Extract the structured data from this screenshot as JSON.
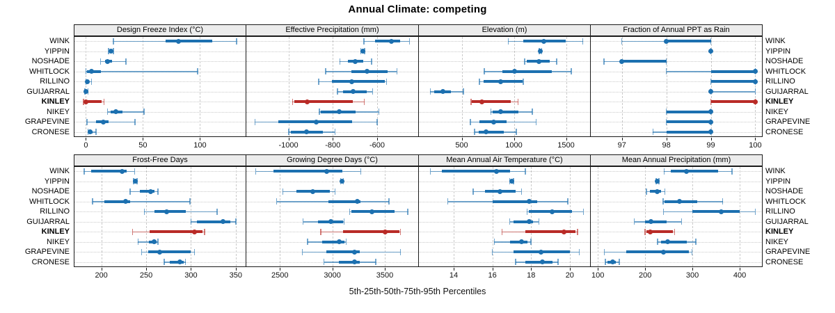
{
  "title": "Annual Climate: competing",
  "caption": "5th-25th-50th-75th-95th Percentiles",
  "highlight_site": "KINLEY",
  "colors": {
    "series_normal": "#1c70b0",
    "series_highlight": "#b92b27",
    "strip_bg": "#ececec",
    "panel_border": "#1a1a1a",
    "gridline": "#c9c9c9",
    "row_guide": "#c9c9c9"
  },
  "sites": [
    "WINK",
    "YIPPIN",
    "NOSHADE",
    "WHITLOCK",
    "RILLINO",
    "GUIJARRAL",
    "KINLEY",
    "NIKEY",
    "GRAPEVINE",
    "CRONESE"
  ],
  "chart_data": {
    "type": "dotplot-percentile-intervals",
    "percentile_labels": [
      "5th",
      "25th",
      "50th",
      "75th",
      "95th"
    ],
    "layout": {
      "rows": 2,
      "cols": 4,
      "legend": "none",
      "grid": "major-x-dashed, row-guides-dotted"
    },
    "panels": [
      {
        "title": "Design Freeze Index (°C)",
        "row": 0,
        "col": 0,
        "xlim": [
          -10,
          140
        ],
        "ticks": [
          0,
          50,
          100
        ],
        "values": {
          "WINK": [
            24,
            70,
            81,
            111,
            132
          ],
          "YIPPIN": [
            20,
            21,
            22,
            23,
            24
          ],
          "NOSHADE": [
            13,
            17,
            19,
            23,
            35
          ],
          "WHITLOCK": [
            0,
            1,
            5,
            13,
            98
          ],
          "RILLINO": [
            0,
            0,
            1,
            3,
            5
          ],
          "GUIJARRAL": [
            -1,
            0,
            0,
            1,
            2
          ],
          "KINLEY": [
            -2,
            0,
            0,
            14,
            16
          ],
          "NIKEY": [
            19,
            22,
            26,
            32,
            51
          ],
          "GRAPEVINE": [
            1,
            9,
            15,
            20,
            43
          ],
          "CRONESE": [
            2,
            3,
            4,
            6,
            9
          ]
        }
      },
      {
        "title": "Effective Precipitation (mm)",
        "row": 0,
        "col": 1,
        "xlim": [
          -1190,
          -415
        ],
        "ticks": [
          -1000,
          -800,
          -600
        ],
        "values": {
          "WINK": [
            -660,
            -610,
            -535,
            -495,
            -455
          ],
          "YIPPIN": [
            -674,
            -668,
            -663,
            -658,
            -656
          ],
          "NOSHADE": [
            -768,
            -731,
            -700,
            -663,
            -626
          ],
          "WHITLOCK": [
            -832,
            -716,
            -645,
            -553,
            -511
          ],
          "RILLINO": [
            -863,
            -803,
            -716,
            -565,
            -558
          ],
          "GUIJARRAL": [
            -779,
            -753,
            -707,
            -648,
            -621
          ],
          "KINLEY": [
            -982,
            -975,
            -916,
            -710,
            -658
          ],
          "NIKEY": [
            -861,
            -855,
            -772,
            -698,
            -593
          ],
          "GRAPEVINE": [
            -1150,
            -1045,
            -874,
            -713,
            -600
          ],
          "CRONESE": [
            -998,
            -990,
            -919,
            -845,
            -790
          ]
        }
      },
      {
        "title": "Elevation (m)",
        "row": 0,
        "col": 2,
        "xlim": [
          90,
          1730
        ],
        "ticks": [
          500,
          1000,
          1500
        ],
        "values": {
          "WINK": [
            945,
            1090,
            1287,
            1495,
            1660
          ],
          "YIPPIN": [
            1244,
            1249,
            1253,
            1259,
            1266
          ],
          "NOSHADE": [
            1102,
            1120,
            1237,
            1340,
            1410
          ],
          "WHITLOCK": [
            716,
            890,
            1006,
            1360,
            1550
          ],
          "RILLINO": [
            670,
            710,
            871,
            1080,
            1090
          ],
          "GUIJARRAL": [
            199,
            239,
            321,
            400,
            516
          ],
          "KINLEY": [
            590,
            596,
            690,
            969,
            1040
          ],
          "NIKEY": [
            779,
            797,
            873,
            1042,
            1176
          ],
          "GRAPEVINE": [
            583,
            672,
            806,
            931,
            1214
          ],
          "CRONESE": [
            623,
            663,
            734,
            902,
            1024
          ]
        }
      },
      {
        "title": "Fraction of Annual PPT as Rain",
        "row": 0,
        "col": 3,
        "xlim": [
          96.3,
          100.15
        ],
        "ticks": [
          97,
          98,
          99,
          100
        ],
        "values": {
          "WINK": [
            97,
            98,
            98,
            99,
            99
          ],
          "YIPPIN": [
            99,
            99,
            99,
            99,
            99
          ],
          "NOSHADE": [
            96.6,
            97,
            97,
            98,
            98
          ],
          "WHITLOCK": [
            98,
            99,
            100,
            100,
            100
          ],
          "RILLINO": [
            99,
            99,
            100,
            100,
            100
          ],
          "GUIJARRAL": [
            99,
            99,
            99,
            99,
            100
          ],
          "KINLEY": [
            99,
            99,
            100,
            100,
            100
          ],
          "NIKEY": [
            98,
            98,
            99,
            99,
            99
          ],
          "GRAPEVINE": [
            98,
            98,
            99,
            99,
            99
          ],
          "CRONESE": [
            97.7,
            98,
            99,
            99,
            99
          ]
        }
      },
      {
        "title": "Frost-Free Days",
        "row": 1,
        "col": 0,
        "xlim": [
          170,
          361
        ],
        "ticks": [
          200,
          250,
          300,
          350
        ],
        "values": {
          "WINK": [
            181,
            189,
            223,
            228,
            237
          ],
          "YIPPIN": [
            236,
            237,
            238,
            239,
            240
          ],
          "NOSHADE": [
            232,
            243,
            255,
            259,
            263
          ],
          "WHITLOCK": [
            190,
            203,
            227,
            232,
            299
          ],
          "RILLINO": [
            248,
            259,
            273,
            294,
            329
          ],
          "GUIJARRAL": [
            300,
            307,
            336,
            344,
            350
          ],
          "KINLEY": [
            235,
            254,
            304,
            313,
            315
          ],
          "NIKEY": [
            241,
            253,
            259,
            262,
            263
          ],
          "GRAPEVINE": [
            245,
            252,
            265,
            300,
            304
          ],
          "CRONESE": [
            270,
            276,
            288,
            292,
            294
          ]
        }
      },
      {
        "title": "Growing Degree Days (°C)",
        "row": 1,
        "col": 1,
        "xlim": [
          2180,
          3818
        ],
        "ticks": [
          2500,
          3000,
          3500
        ],
        "values": {
          "WINK": [
            2270,
            2440,
            2945,
            3095,
            3270
          ],
          "YIPPIN": [
            3078,
            3085,
            3090,
            3097,
            3104
          ],
          "NOSHADE": [
            2529,
            2655,
            2811,
            2973,
            3026
          ],
          "WHITLOCK": [
            2470,
            2965,
            3240,
            3265,
            3540
          ],
          "RILLINO": [
            3166,
            3180,
            3377,
            3595,
            3720
          ],
          "GUIJARRAL": [
            2722,
            2866,
            2989,
            3100,
            3111
          ],
          "KINLEY": [
            2889,
            3100,
            3500,
            3640,
            3650
          ],
          "NIKEY": [
            2765,
            2905,
            3065,
            3115,
            3130
          ],
          "GRAPEVINE": [
            2715,
            2940,
            3210,
            3260,
            3650
          ],
          "CRONESE": [
            2920,
            3060,
            3210,
            3260,
            3415
          ]
        }
      },
      {
        "title": "Mean Annual Air Temperature (°C)",
        "row": 1,
        "col": 2,
        "xlim": [
          12.2,
          21.05
        ],
        "ticks": [
          14,
          16,
          18,
          20
        ],
        "values": {
          "WINK": [
            12.8,
            13.4,
            16.2,
            16.9,
            17.7
          ],
          "YIPPIN": [
            16.9,
            17.0,
            17.0,
            17.1,
            17.1
          ],
          "NOSHADE": [
            15.0,
            15.6,
            16.4,
            17.2,
            17.5
          ],
          "WHITLOCK": [
            13.7,
            16.0,
            17.9,
            18.3,
            19.9
          ],
          "RILLINO": [
            17.8,
            17.9,
            19.1,
            20.1,
            20.7
          ],
          "GUIJARRAL": [
            16.9,
            17.1,
            17.9,
            18.1,
            18.4
          ],
          "KINLEY": [
            16.5,
            17.7,
            19.7,
            20.3,
            20.4
          ],
          "NIKEY": [
            16.1,
            16.9,
            17.5,
            17.8,
            18.0
          ],
          "GRAPEVINE": [
            16.0,
            17.1,
            18.5,
            20.0,
            20.5
          ],
          "CRONESE": [
            17.2,
            17.7,
            18.6,
            19.1,
            19.4
          ]
        }
      },
      {
        "title": "Mean Annual Precipitation (mm)",
        "row": 1,
        "col": 3,
        "xlim": [
          85,
          447
        ],
        "ticks": [
          100,
          200,
          300,
          400
        ],
        "values": {
          "WINK": [
            240,
            254,
            287,
            354,
            384
          ],
          "YIPPIN": [
            223,
            225,
            226,
            228,
            229
          ],
          "NOSHADE": [
            203,
            210,
            226,
            233,
            242
          ],
          "WHITLOCK": [
            238,
            241,
            273,
            310,
            364
          ],
          "RILLINO": [
            239,
            300,
            361,
            400,
            433
          ],
          "GUIJARRAL": [
            177,
            200,
            213,
            246,
            277
          ],
          "KINLEY": [
            200,
            202,
            211,
            258,
            262
          ],
          "NIKEY": [
            226,
            234,
            247,
            288,
            307
          ],
          "GRAPEVINE": [
            114,
            160,
            239,
            292,
            299
          ],
          "CRONESE": [
            116,
            121,
            132,
            138,
            145
          ]
        }
      }
    ]
  }
}
